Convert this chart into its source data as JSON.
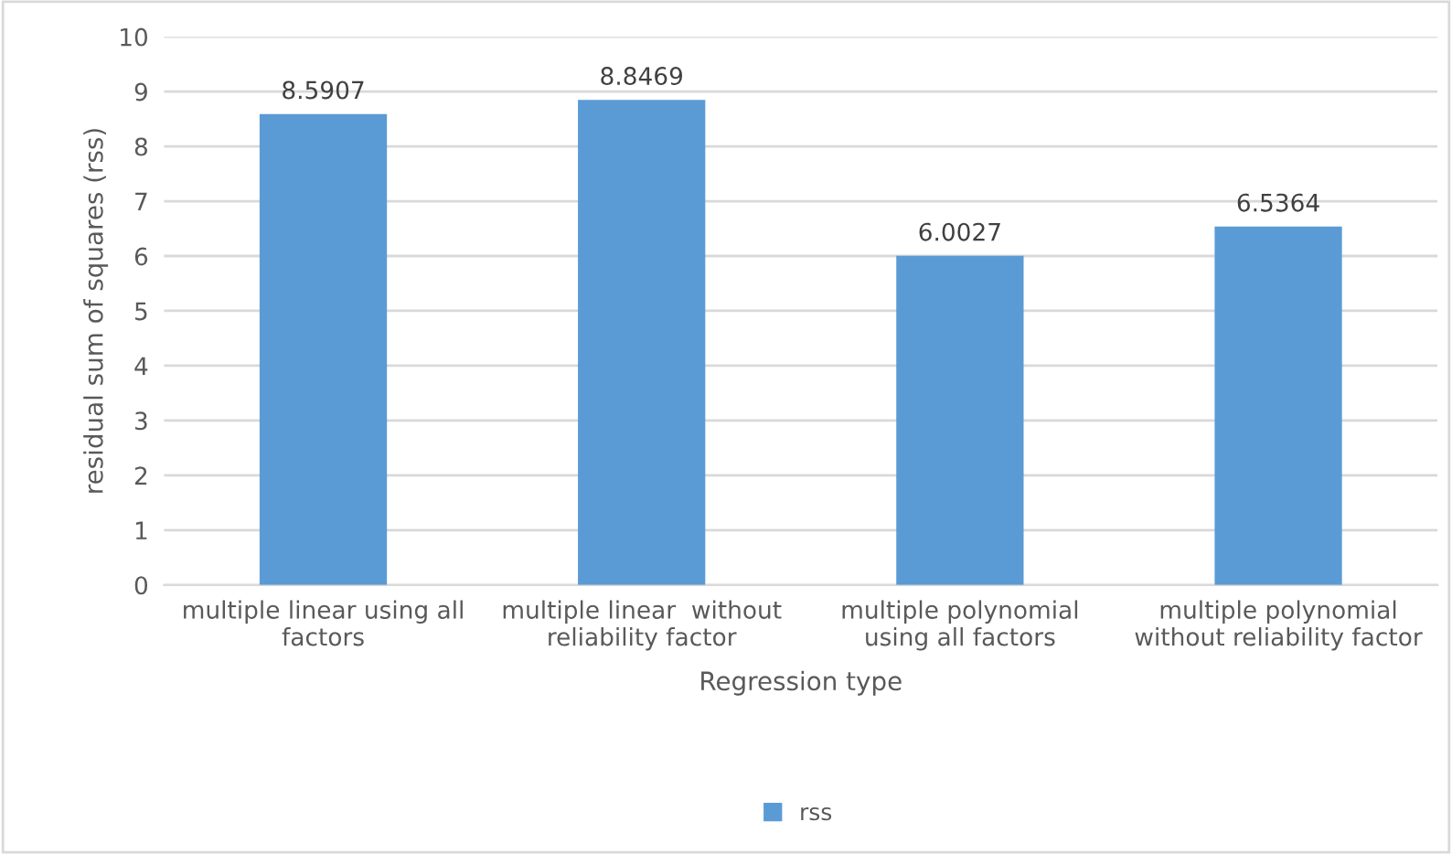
{
  "chart_data": {
    "type": "bar",
    "categories": [
      "multiple linear using all\nfactors",
      "multiple linear  without\nreliability factor",
      "multiple polynomial\nusing all factors",
      "multiple polynomial\nwithout reliability factor"
    ],
    "series": [
      {
        "name": "rss",
        "color": "#5b9bd5",
        "values": [
          8.5907,
          8.8469,
          6.0027,
          6.5364
        ]
      }
    ],
    "xlabel": "Regression type",
    "ylabel": "residual sum of squares (rss)",
    "ylim": [
      0,
      10
    ],
    "yticks": [
      0,
      1,
      2,
      3,
      4,
      5,
      6,
      7,
      8,
      9,
      10
    ],
    "grid": "y",
    "legend": "bottom",
    "data_labels": true
  }
}
